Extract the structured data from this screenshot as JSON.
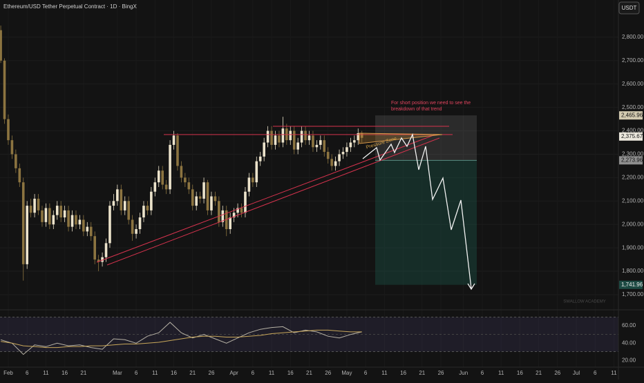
{
  "chart_data": {
    "type": "candlestick",
    "title": "Ethereum/USD Tether Perpetual Contract · 1D · BingX",
    "currency": "USDT",
    "watermark": "SWALLOW ACADEMY",
    "annotations": [
      "For short position we need to see the breakdown of that trend",
      "Pressure Zone"
    ],
    "x": [
      30,
      31,
      32,
      33,
      34,
      35,
      36,
      37,
      38,
      39,
      40,
      41,
      42,
      43,
      44,
      45,
      46,
      47,
      48,
      49,
      50,
      51,
      52,
      53,
      54,
      55,
      56,
      57,
      58,
      59,
      60,
      61,
      62,
      63,
      64,
      65,
      66,
      67,
      68,
      69,
      70,
      71,
      72,
      73,
      74,
      75,
      76,
      77,
      78,
      79,
      80,
      81,
      82,
      83,
      84,
      85,
      86,
      87,
      88,
      89,
      90,
      91,
      92,
      93,
      94,
      95,
      96,
      97,
      98,
      99,
      100,
      101,
      102,
      103,
      104,
      105,
      106,
      107,
      108,
      109,
      110,
      111,
      112,
      113,
      114,
      115,
      116,
      117,
      118,
      119,
      120,
      121,
      122,
      123,
      124,
      125,
      126
    ],
    "open": [
      2830,
      2700,
      2450,
      2360,
      2300,
      2240,
      2180,
      1830,
      2080,
      2050,
      2110,
      2060,
      2010,
      2070,
      2000,
      2040,
      2080,
      2030,
      2060,
      1990,
      2040,
      2000,
      2020,
      1970,
      1990,
      1950,
      1850,
      1840,
      1860,
      1920,
      2080,
      2100,
      2150,
      2060,
      2100,
      2020,
      1960,
      1980,
      2030,
      2080,
      2060,
      2140,
      2180,
      2230,
      2170,
      2150,
      2340,
      2380,
      2250,
      2200,
      2180,
      2150,
      2080,
      2120,
      2110,
      2180,
      2060,
      2120,
      2100,
      2010,
      2060,
      1980,
      2030,
      2050,
      2070,
      2050,
      2140,
      2200,
      2180,
      2270,
      2290,
      2350,
      2400,
      2340,
      2380,
      2350,
      2410,
      2360,
      2400,
      2320,
      2350,
      2400,
      2360,
      2380,
      2330,
      2340,
      2360,
      2310,
      2280,
      2250,
      2270,
      2300,
      2310,
      2330,
      2350,
      2360,
      2390
    ],
    "high": [
      2850,
      2710,
      2470,
      2380,
      2320,
      2260,
      2200,
      2100,
      2110,
      2130,
      2130,
      2080,
      2090,
      2090,
      2060,
      2100,
      2100,
      2080,
      2080,
      2060,
      2060,
      2040,
      2040,
      2010,
      2010,
      1970,
      1870,
      1880,
      1940,
      2100,
      2130,
      2170,
      2170,
      2120,
      2120,
      2040,
      2000,
      2050,
      2100,
      2100,
      2160,
      2200,
      2250,
      2250,
      2190,
      2360,
      2400,
      2390,
      2270,
      2220,
      2200,
      2170,
      2140,
      2140,
      2200,
      2190,
      2140,
      2140,
      2120,
      2080,
      2080,
      2050,
      2070,
      2090,
      2090,
      2160,
      2220,
      2220,
      2290,
      2310,
      2370,
      2420,
      2420,
      2400,
      2400,
      2460,
      2430,
      2420,
      2420,
      2370,
      2420,
      2420,
      2400,
      2400,
      2360,
      2380,
      2380,
      2330,
      2300,
      2290,
      2320,
      2330,
      2350,
      2370,
      2380,
      2410,
      2400
    ],
    "low": [
      2690,
      2430,
      2340,
      2280,
      2220,
      2160,
      1760,
      1810,
      2030,
      2030,
      2040,
      1990,
      1990,
      1980,
      1980,
      2020,
      2010,
      2010,
      1970,
      1970,
      1980,
      1980,
      1950,
      1950,
      1930,
      1830,
      1800,
      1820,
      1840,
      1900,
      2060,
      2080,
      2040,
      2040,
      2000,
      1930,
      1940,
      1960,
      2010,
      2040,
      2040,
      2120,
      2160,
      2150,
      2130,
      2130,
      2320,
      2230,
      2180,
      2160,
      2130,
      2060,
      2060,
      2090,
      2090,
      2040,
      2040,
      2080,
      1990,
      1990,
      1950,
      1960,
      2010,
      2030,
      2030,
      2030,
      2120,
      2160,
      2160,
      2250,
      2270,
      2330,
      2320,
      2320,
      2330,
      2330,
      2340,
      2340,
      2300,
      2300,
      2330,
      2340,
      2340,
      2310,
      2310,
      2320,
      2290,
      2260,
      2230,
      2230,
      2250,
      2280,
      2290,
      2310,
      2330,
      2340,
      2350
    ],
    "close": [
      2700,
      2450,
      2360,
      2300,
      2240,
      2180,
      1830,
      2080,
      2050,
      2110,
      2060,
      2010,
      2070,
      2000,
      2040,
      2080,
      2030,
      2060,
      1990,
      2040,
      2000,
      2020,
      1970,
      1990,
      1950,
      1850,
      1840,
      1860,
      1920,
      2080,
      2100,
      2150,
      2060,
      2100,
      2020,
      1960,
      1980,
      2030,
      2080,
      2060,
      2140,
      2180,
      2230,
      2170,
      2150,
      2340,
      2380,
      2250,
      2200,
      2180,
      2150,
      2080,
      2120,
      2110,
      2180,
      2060,
      2120,
      2100,
      2010,
      2060,
      1980,
      2030,
      2050,
      2070,
      2050,
      2140,
      2200,
      2180,
      2270,
      2290,
      2350,
      2400,
      2340,
      2380,
      2350,
      2410,
      2360,
      2400,
      2320,
      2350,
      2400,
      2360,
      2380,
      2330,
      2340,
      2360,
      2310,
      2280,
      2250,
      2270,
      2300,
      2310,
      2330,
      2350,
      2360,
      2390,
      2370
    ],
    "up_color": "#ece3cb",
    "down_color": "#8c7440",
    "xlim": [
      29.8,
      194.2
    ],
    "xticks": [
      {
        "value": 32,
        "label": "Feb"
      },
      {
        "value": 37,
        "label": "6"
      },
      {
        "value": 42,
        "label": "11"
      },
      {
        "value": 47,
        "label": "16"
      },
      {
        "value": 52,
        "label": "21"
      },
      {
        "value": 61,
        "label": "Mar"
      },
      {
        "value": 66,
        "label": "6"
      },
      {
        "value": 71,
        "label": "11"
      },
      {
        "value": 76,
        "label": "16"
      },
      {
        "value": 81,
        "label": "21"
      },
      {
        "value": 86,
        "label": "26"
      },
      {
        "value": 92,
        "label": "Apr"
      },
      {
        "value": 97,
        "label": "6"
      },
      {
        "value": 102,
        "label": "11"
      },
      {
        "value": 107,
        "label": "16"
      },
      {
        "value": 112,
        "label": "21"
      },
      {
        "value": 117,
        "label": "26"
      },
      {
        "value": 122,
        "label": "May"
      },
      {
        "value": 127,
        "label": "6"
      },
      {
        "value": 132,
        "label": "11"
      },
      {
        "value": 137,
        "label": "16"
      },
      {
        "value": 142,
        "label": "21"
      },
      {
        "value": 147,
        "label": "26"
      },
      {
        "value": 153,
        "label": "Jun"
      },
      {
        "value": 158,
        "label": "6"
      },
      {
        "value": 163,
        "label": "11"
      },
      {
        "value": 168,
        "label": "16"
      },
      {
        "value": 173,
        "label": "21"
      },
      {
        "value": 178,
        "label": "26"
      },
      {
        "value": 183,
        "label": "Jul"
      },
      {
        "value": 188,
        "label": "6"
      },
      {
        "value": 193,
        "label": "11"
      }
    ],
    "ylim": [
      1638,
      2959
    ],
    "yticks": [
      {
        "value": 2800,
        "label": "2,800.00"
      },
      {
        "value": 2700,
        "label": "2,700.00"
      },
      {
        "value": 2600,
        "label": "2,600.00"
      },
      {
        "value": 2500,
        "label": "2,500.00"
      },
      {
        "value": 2400,
        "label": "2,400.00"
      },
      {
        "value": 2300,
        "label": "2,300.00"
      },
      {
        "value": 2200,
        "label": "2,200.00"
      },
      {
        "value": 2100,
        "label": "2,100.00"
      },
      {
        "value": 2000,
        "label": "2,000.00"
      },
      {
        "value": 1900,
        "label": "1,900.00"
      },
      {
        "value": 1800,
        "label": "1,800.00"
      },
      {
        "value": 1700,
        "label": "1,700.00"
      }
    ],
    "grid": true,
    "price_labels": [
      {
        "value": 2465.96,
        "label": "2,465.96",
        "color": "#d3cab0"
      },
      {
        "value": 2375.67,
        "label": "2,375.67",
        "color": "#ebe7dd"
      },
      {
        "value": 2273.96,
        "label": "2,273.96",
        "color": "#8f8f8f"
      },
      {
        "value": 1741.96,
        "label": "1,741.96",
        "color": "#1d4a43"
      }
    ],
    "rsi": {
      "x": [
        30,
        33,
        36,
        39,
        42,
        45,
        48,
        51,
        54,
        57,
        60,
        63,
        66,
        69,
        72,
        75,
        78,
        81,
        84,
        87,
        90,
        93,
        96,
        99,
        102,
        105,
        108,
        111,
        114,
        117,
        120,
        123,
        126
      ],
      "values": [
        44,
        40,
        27,
        38,
        36,
        40,
        37,
        38,
        35,
        33,
        45,
        44,
        40,
        48,
        52,
        64,
        52,
        46,
        50,
        45,
        40,
        46,
        52,
        56,
        58,
        59,
        52,
        55,
        53,
        48,
        46,
        50,
        53
      ],
      "ma_values": [
        42,
        40,
        37,
        36,
        35,
        35,
        36,
        36,
        37,
        37,
        38,
        39,
        39,
        40,
        41,
        43,
        45,
        47,
        48,
        48,
        47,
        47,
        48,
        49,
        51,
        52,
        53,
        54,
        55,
        55,
        54,
        53,
        53
      ],
      "color": "#b8b3a6",
      "ma_color": "#c9a85a",
      "ylim": [
        14,
        76
      ],
      "yticks": [
        {
          "value": 60,
          "label": "60.00"
        },
        {
          "value": 40,
          "label": "40.00"
        },
        {
          "value": 20,
          "label": "20.00"
        }
      ]
    }
  }
}
